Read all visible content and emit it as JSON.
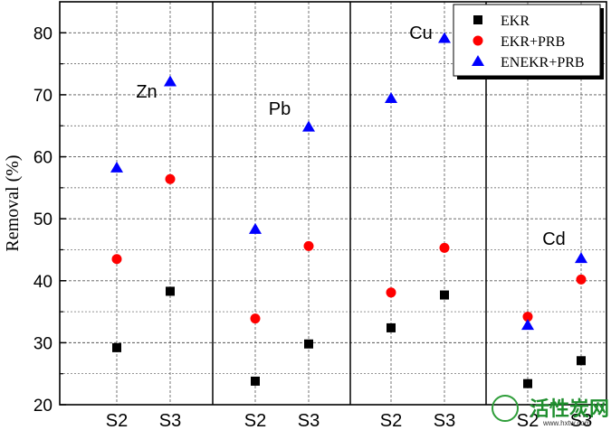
{
  "chart_data": {
    "type": "scatter",
    "title": "",
    "ylabel": "Removal (%)",
    "xlabel": "",
    "ylim": [
      20,
      85
    ],
    "yticks": [
      20,
      30,
      40,
      50,
      60,
      70,
      80
    ],
    "grid": true,
    "legend_position": "top-right",
    "categories": [
      "S2",
      "S3",
      "S2",
      "S3",
      "S2",
      "S3",
      "S2",
      "S3"
    ],
    "groups": [
      {
        "label": "Zn",
        "categories": [
          0,
          1
        ]
      },
      {
        "label": "Pb",
        "categories": [
          2,
          3
        ]
      },
      {
        "label": "Cu",
        "categories": [
          4,
          5
        ]
      },
      {
        "label": "Cd",
        "categories": [
          6,
          7
        ]
      }
    ],
    "series": [
      {
        "name": "EKR",
        "marker": "square",
        "color": "#000000",
        "values": [
          29.2,
          38.3,
          23.8,
          29.8,
          32.4,
          37.7,
          23.4,
          27.1
        ]
      },
      {
        "name": "EKR+PRB",
        "marker": "circle",
        "color": "#ff0000",
        "values": [
          43.5,
          56.4,
          33.9,
          45.6,
          38.1,
          45.3,
          34.2,
          40.2
        ]
      },
      {
        "name": "ENEKR+PRB",
        "marker": "triangle",
        "color": "#0000ff",
        "values": [
          58.2,
          72.1,
          48.3,
          64.8,
          69.4,
          79.1,
          32.8,
          43.6
        ]
      }
    ]
  },
  "watermark": {
    "text": "活性炭网",
    "url": "www.hxtw.com"
  }
}
